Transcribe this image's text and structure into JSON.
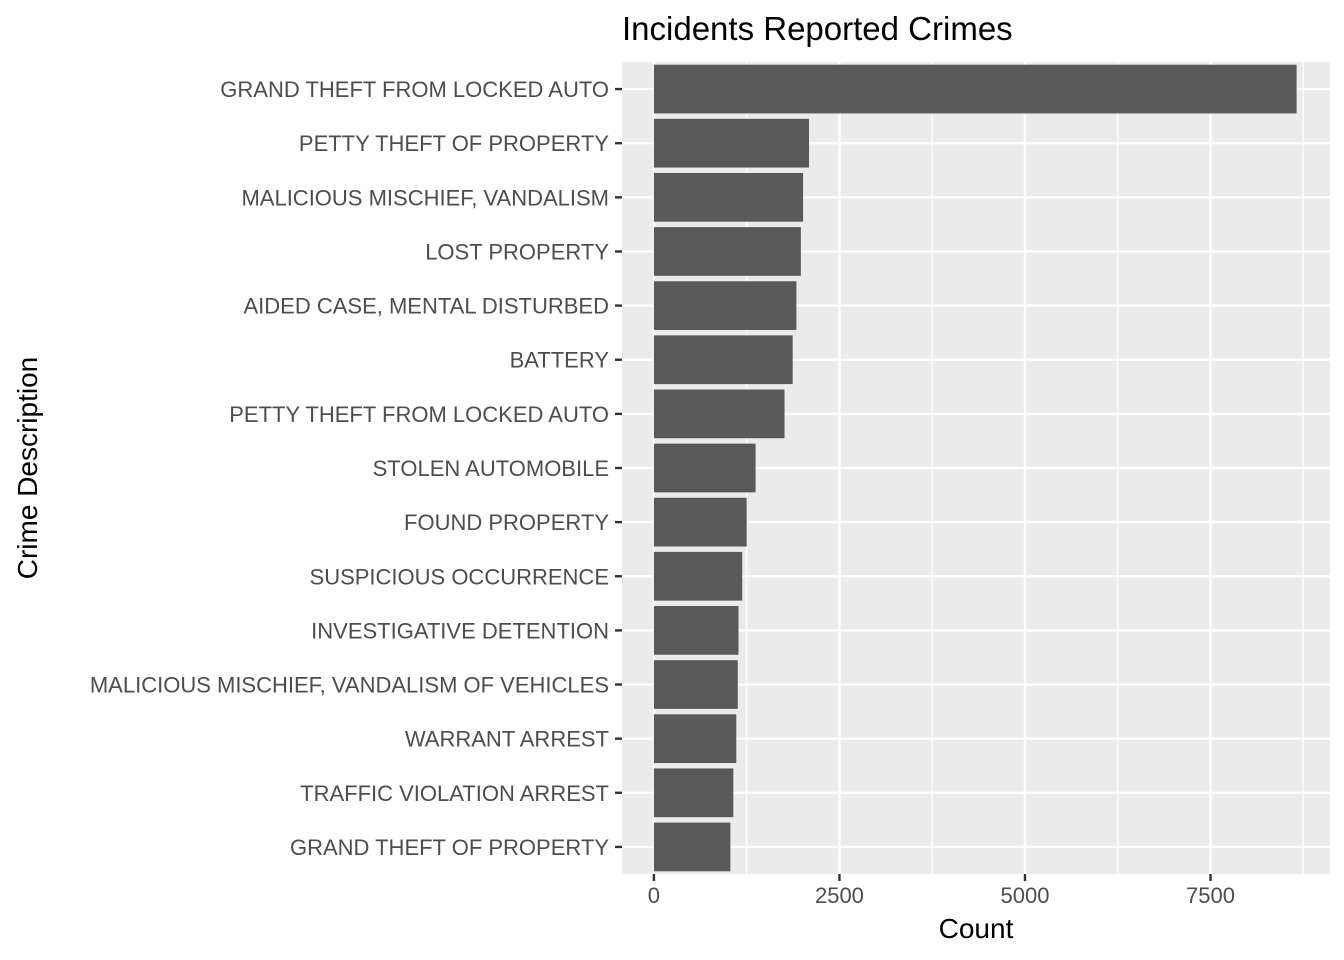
{
  "chart_data": {
    "type": "bar",
    "orientation": "horizontal",
    "title": "Incidents Reported Crimes",
    "xlabel": "Count",
    "ylabel": "Crime Description",
    "categories": [
      "GRAND THEFT FROM LOCKED AUTO",
      "PETTY THEFT OF PROPERTY",
      "MALICIOUS MISCHIEF, VANDALISM",
      "LOST PROPERTY",
      "AIDED CASE, MENTAL DISTURBED",
      "BATTERY",
      "PETTY THEFT FROM LOCKED AUTO",
      "STOLEN AUTOMOBILE",
      "FOUND PROPERTY",
      "SUSPICIOUS OCCURRENCE",
      "INVESTIGATIVE DETENTION",
      "MALICIOUS MISCHIEF, VANDALISM OF VEHICLES",
      "WARRANT ARREST",
      "TRAFFIC VIOLATION ARREST",
      "GRAND THEFT OF PROPERTY"
    ],
    "values": [
      8660,
      2090,
      2010,
      1980,
      1920,
      1870,
      1760,
      1370,
      1250,
      1190,
      1140,
      1130,
      1110,
      1070,
      1030
    ],
    "xlim": [
      -430,
      9110
    ],
    "xticks": [
      0,
      2500,
      5000,
      7500
    ],
    "xtick_labels": [
      "0",
      "2500",
      "5000",
      "7500"
    ],
    "grid": true,
    "colors": {
      "bar": "#595959",
      "panel": "#ebebeb",
      "grid": "#ffffff"
    }
  }
}
